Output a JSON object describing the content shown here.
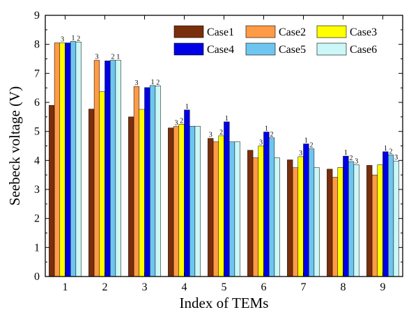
{
  "chart_data": {
    "type": "bar",
    "title": "",
    "xlabel": "Index of TEMs",
    "ylabel": "Seebeck voltage (V)",
    "ylim": [
      0,
      9
    ],
    "yticks": [
      0,
      1,
      2,
      3,
      4,
      5,
      6,
      7,
      8,
      9
    ],
    "grid": false,
    "legend_position": "top-right",
    "categories": [
      "1",
      "2",
      "3",
      "4",
      "5",
      "6",
      "7",
      "8",
      "9"
    ],
    "series": [
      {
        "name": "Case1",
        "color": "#7a2e0c",
        "values": [
          5.9,
          5.77,
          5.5,
          5.12,
          4.76,
          4.35,
          4.02,
          3.7,
          3.83
        ]
      },
      {
        "name": "Case2",
        "color": "#ff9b45",
        "values": [
          8.05,
          7.45,
          6.55,
          5.17,
          4.64,
          4.09,
          3.75,
          3.42,
          3.5
        ]
      },
      {
        "name": "Case3",
        "color": "#ffff00",
        "values": [
          8.05,
          6.37,
          5.76,
          5.25,
          4.85,
          4.5,
          4.13,
          3.76,
          3.85
        ]
      },
      {
        "name": "Case4",
        "color": "#0000e6",
        "values": [
          8.05,
          7.43,
          6.51,
          5.74,
          5.33,
          4.98,
          4.57,
          4.15,
          4.3
        ]
      },
      {
        "name": "Case5",
        "color": "#6ec6f0",
        "values": [
          8.1,
          7.45,
          6.58,
          5.18,
          4.64,
          4.78,
          4.4,
          3.96,
          4.19
        ]
      },
      {
        "name": "Case6",
        "color": "#ccf7f7",
        "values": [
          8.08,
          7.45,
          6.57,
          5.18,
          4.64,
          4.09,
          3.75,
          3.85,
          3.98
        ]
      }
    ],
    "annotations": [
      {
        "category": "1",
        "series": "Case3",
        "text": "3"
      },
      {
        "category": "1",
        "series": "Case5",
        "text": "1"
      },
      {
        "category": "1",
        "series": "Case6",
        "text": "2"
      },
      {
        "category": "2",
        "series": "Case2",
        "text": "3"
      },
      {
        "category": "2",
        "series": "Case5",
        "text": "2"
      },
      {
        "category": "2",
        "series": "Case6",
        "text": "1"
      },
      {
        "category": "3",
        "series": "Case2",
        "text": "3"
      },
      {
        "category": "3",
        "series": "Case5",
        "text": "1"
      },
      {
        "category": "3",
        "series": "Case6",
        "text": "2"
      },
      {
        "category": "4",
        "series": "Case2",
        "text": "3"
      },
      {
        "category": "4",
        "series": "Case3",
        "text": "2"
      },
      {
        "category": "4",
        "series": "Case4",
        "text": "1"
      },
      {
        "category": "5",
        "series": "Case1",
        "text": "3"
      },
      {
        "category": "5",
        "series": "Case3",
        "text": "2"
      },
      {
        "category": "5",
        "series": "Case4",
        "text": "1"
      },
      {
        "category": "6",
        "series": "Case3",
        "text": "3"
      },
      {
        "category": "6",
        "series": "Case4",
        "text": "1"
      },
      {
        "category": "6",
        "series": "Case5",
        "text": "2"
      },
      {
        "category": "7",
        "series": "Case3",
        "text": "3"
      },
      {
        "category": "7",
        "series": "Case4",
        "text": "1"
      },
      {
        "category": "7",
        "series": "Case5",
        "text": "2"
      },
      {
        "category": "8",
        "series": "Case4",
        "text": "1"
      },
      {
        "category": "8",
        "series": "Case5",
        "text": "2"
      },
      {
        "category": "8",
        "series": "Case6",
        "text": "3"
      },
      {
        "category": "9",
        "series": "Case4",
        "text": "1"
      },
      {
        "category": "9",
        "series": "Case5",
        "text": "2"
      },
      {
        "category": "9",
        "series": "Case6",
        "text": "3"
      }
    ]
  }
}
